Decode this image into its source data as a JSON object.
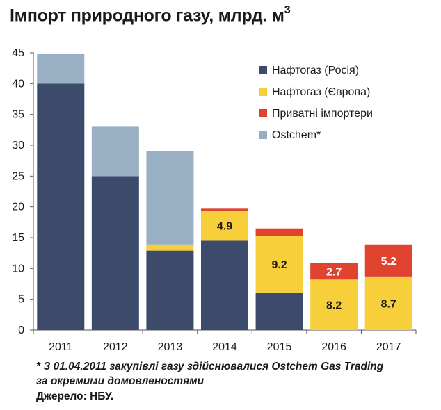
{
  "title_main": "Імпорт природного газу, млрд. м",
  "title_sup": "3",
  "footnote_line1": "* З 01.04.2011 закупівлі газу здійснювалися Ostchem Gas Trading",
  "footnote_line2": "за окремими домовленостями",
  "source": "Джерело: НБУ.",
  "chart_data": {
    "type": "bar",
    "stacked": true,
    "title": "Імпорт природного газу, млрд. м3",
    "xlabel": "",
    "ylabel": "",
    "ylim": [
      0,
      45
    ],
    "yticks": [
      0,
      5,
      10,
      15,
      20,
      25,
      30,
      35,
      40,
      45
    ],
    "grid": false,
    "legend_position": "top-right",
    "categories": [
      "2011",
      "2012",
      "2013",
      "2014",
      "2015",
      "2016",
      "2017"
    ],
    "series": [
      {
        "name": "Нафтогаз (Росія)",
        "color": "#3c4a6b",
        "values": [
          40.0,
          25.0,
          12.9,
          14.5,
          6.1,
          0,
          0
        ]
      },
      {
        "name": "Нафтогаз (Європа)",
        "color": "#f7cf3a",
        "values": [
          0,
          0,
          1.0,
          4.9,
          9.2,
          8.2,
          8.7
        ]
      },
      {
        "name": "Приватні імпортери",
        "color": "#e0432f",
        "values": [
          0,
          0,
          0,
          0.3,
          1.2,
          2.7,
          5.2
        ]
      },
      {
        "name": "Ostchem*",
        "color": "#98afc4",
        "values": [
          4.8,
          8.0,
          15.1,
          0,
          0,
          0,
          0
        ]
      }
    ],
    "data_labels": [
      {
        "category": "2014",
        "series": "Нафтогаз (Європа)",
        "text": "4.9",
        "color": "#1a1a1a"
      },
      {
        "category": "2015",
        "series": "Нафтогаз (Європа)",
        "text": "9.2",
        "color": "#1a1a1a"
      },
      {
        "category": "2016",
        "series": "Нафтогаз (Європа)",
        "text": "8.2",
        "color": "#1a1a1a"
      },
      {
        "category": "2016",
        "series": "Приватні імпортери",
        "text": "2.7",
        "color": "#ffffff"
      },
      {
        "category": "2017",
        "series": "Нафтогаз (Європа)",
        "text": "8.7",
        "color": "#1a1a1a"
      },
      {
        "category": "2017",
        "series": "Приватні імпортери",
        "text": "5.2",
        "color": "#ffffff"
      }
    ]
  }
}
